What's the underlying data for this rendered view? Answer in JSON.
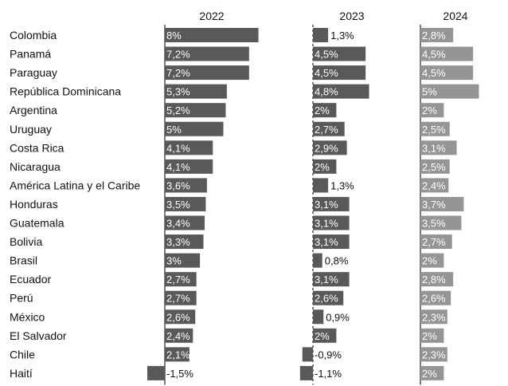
{
  "chart_data": {
    "type": "bar",
    "categories": [
      "Colombia",
      "Panamá",
      "Paraguay",
      "República Dominicana",
      "Argentina",
      "Uruguay",
      "Costa Rica",
      "Nicaragua",
      "América Latina y el Caribe",
      "Honduras",
      "Guatemala",
      "Bolivia",
      "Brasil",
      "Ecuador",
      "Perú",
      "México",
      "El Salvador",
      "Chile",
      "Haití"
    ],
    "series": [
      {
        "name": "2022",
        "values": [
          8,
          7.2,
          7.2,
          5.3,
          5.2,
          5,
          4.1,
          4.1,
          3.6,
          3.5,
          3.4,
          3.3,
          3,
          2.7,
          2.7,
          2.6,
          2.4,
          2.1,
          -1.5
        ],
        "labels": [
          "8%",
          "7,2%",
          "7,2%",
          "5,3%",
          "5,2%",
          "5%",
          "4,1%",
          "4,1%",
          "3,6%",
          "3,5%",
          "3,4%",
          "3,3%",
          "3%",
          "2,7%",
          "2,7%",
          "2,6%",
          "2,4%",
          "2,1%",
          "-1,5%"
        ],
        "color": "#595959"
      },
      {
        "name": "2023",
        "values": [
          1.3,
          4.5,
          4.5,
          4.8,
          2,
          2.7,
          2.9,
          2,
          1.3,
          3.1,
          3.1,
          3.1,
          0.8,
          3.1,
          2.6,
          0.9,
          2,
          -0.9,
          -1.1
        ],
        "labels": [
          "1,3%",
          "4,5%",
          "4,5%",
          "4,8%",
          "2%",
          "2,7%",
          "2,9%",
          "2%",
          "1,3%",
          "3,1%",
          "3,1%",
          "3,1%",
          "0,8%",
          "3,1%",
          "2,6%",
          "0,9%",
          "2%",
          "-0,9%",
          "-1,1%"
        ],
        "color": "#595959"
      },
      {
        "name": "2024",
        "values": [
          2.8,
          4.5,
          4.5,
          5,
          2,
          2.5,
          3.1,
          2.5,
          2.4,
          3.7,
          3.5,
          2.7,
          2,
          2.8,
          2.6,
          2.3,
          2,
          2.3,
          2
        ],
        "labels": [
          "2,8%",
          "4,5%",
          "4,5%",
          "5%",
          "2%",
          "2,5%",
          "3,1%",
          "2,5%",
          "2,4%",
          "3,7%",
          "3,5%",
          "2,7%",
          "2%",
          "2,8%",
          "2,6%",
          "2,3%",
          "2%",
          "2,3%",
          "2%"
        ],
        "color": "#959595"
      }
    ],
    "title": "",
    "xlabel": "",
    "ylabel": "",
    "grid": false,
    "legend": "none"
  }
}
